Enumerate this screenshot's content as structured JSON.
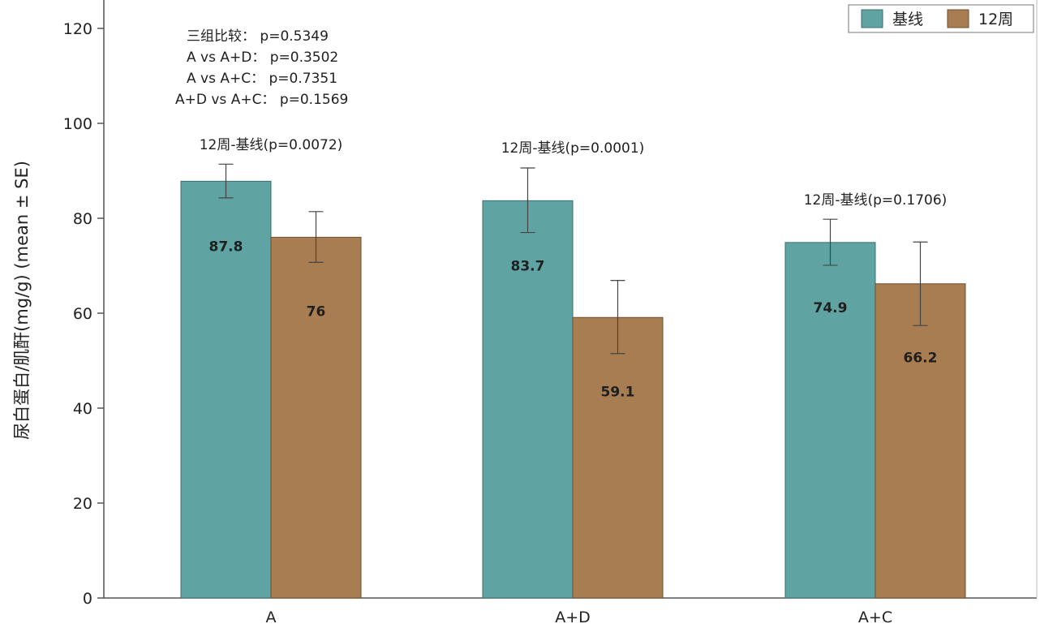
{
  "chart_data": {
    "type": "bar",
    "categories": [
      "A",
      "A+D",
      "A+C"
    ],
    "series": [
      {
        "name": "基线",
        "color": "#5fa3a3",
        "values": [
          87.8,
          83.7,
          74.9
        ],
        "labels": [
          "87.8",
          "83.7",
          "74.9"
        ],
        "err_low": [
          84.3,
          77.0,
          70.1
        ],
        "err_high": [
          91.4,
          90.6,
          79.8
        ]
      },
      {
        "name": "12周",
        "color": "#a87d52",
        "values": [
          76.0,
          59.1,
          66.2
        ],
        "labels": [
          "76",
          "59.1",
          "66.2"
        ],
        "err_low": [
          70.7,
          51.5,
          57.4
        ],
        "err_high": [
          81.4,
          66.9,
          75.0
        ]
      }
    ],
    "ylabel": "尿白蛋白/肌酐(mg/g) (mean ± SE)",
    "xlabel": "",
    "ylim": [
      0,
      120
    ],
    "yticks": [
      "0",
      "20",
      "40",
      "60",
      "80",
      "100",
      "120"
    ],
    "legend_position": "top-right",
    "group_comparison": [
      "三组比较： p=0.5349",
      "A vs A+D： p=0.3502",
      "A vs A+C： p=0.7351",
      "A+D vs A+C： p=0.1569"
    ],
    "change_annotations": [
      "12周-基线(p=0.0072)",
      "12周-基线(p=0.0001)",
      "12周-基线(p=0.1706)"
    ]
  }
}
